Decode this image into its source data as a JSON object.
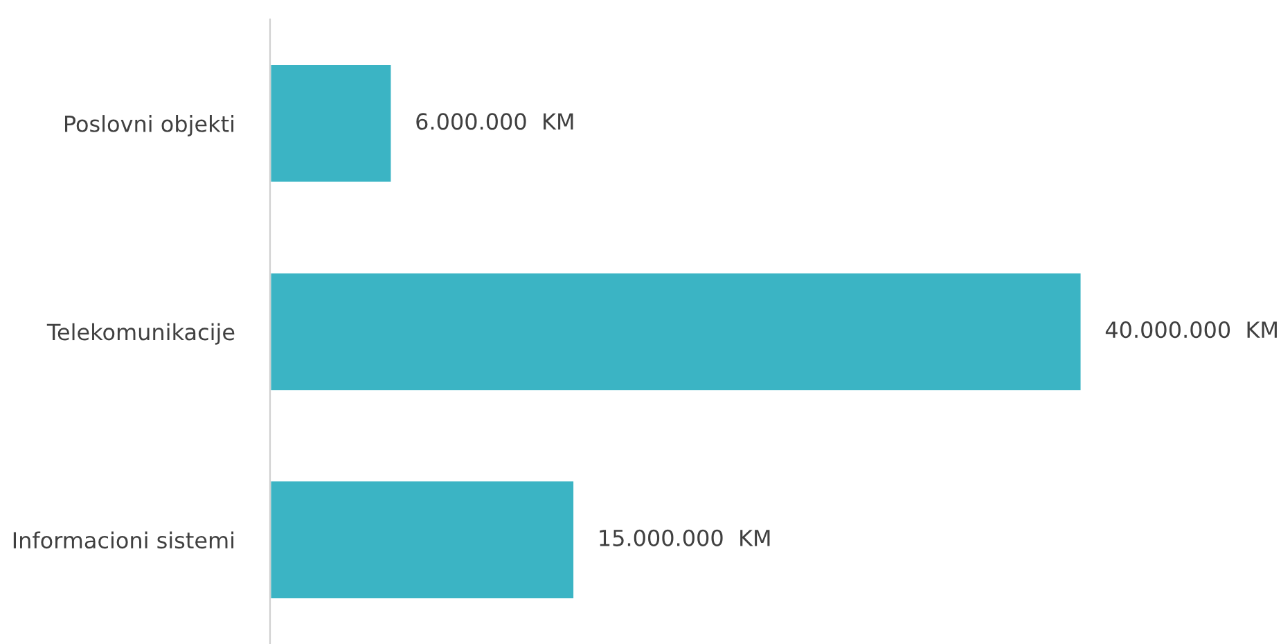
{
  "chart_data": {
    "type": "bar",
    "orientation": "horizontal",
    "categories": [
      "Poslovni objekti",
      "Telekomunikacije",
      "Informacioni sistemi"
    ],
    "values": [
      6000000,
      40000000,
      15000000
    ],
    "value_labels": [
      "6.000.000  KM",
      "40.000.000  KM",
      "15.000.000  KM"
    ],
    "color": "#3bb4c4",
    "grid": false,
    "legend": false
  }
}
